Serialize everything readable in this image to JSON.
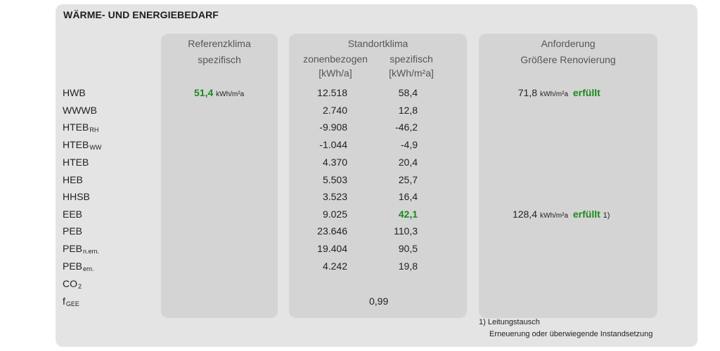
{
  "title": "WÄRME- UND ENERGIEBEDARF",
  "headers": {
    "referenz_1": "Referenzklima",
    "referenz_2": "spezifisch",
    "standort": "Standortklima",
    "zonen": "zonenbezogen",
    "zonen_unit": "[kWh/a]",
    "spez": "spezifisch",
    "spez_unit": "[kWh/m²a]",
    "anf_1": "Anforderung",
    "anf_2": "Größere Renovierung"
  },
  "rows": [
    {
      "main": "HWB",
      "sub": ""
    },
    {
      "main": "WWWB",
      "sub": ""
    },
    {
      "main": "HTEB",
      "sub": "RH"
    },
    {
      "main": "HTEB",
      "sub": "WW"
    },
    {
      "main": "HTEB",
      "sub": ""
    },
    {
      "main": "HEB",
      "sub": ""
    },
    {
      "main": "HHSB",
      "sub": ""
    },
    {
      "main": "EEB",
      "sub": ""
    },
    {
      "main": "PEB",
      "sub": ""
    },
    {
      "main": "PEB",
      "sub": "n.ern."
    },
    {
      "main": "PEB",
      "sub": "ern."
    },
    {
      "main": "CO",
      "sub": "2"
    },
    {
      "main": "f",
      "sub": "GEE"
    }
  ],
  "referenz_hwb": {
    "value": "51,4",
    "unit": "kWh/m²a"
  },
  "zonen_values": [
    "12.518",
    "2.740",
    "-9.908",
    "-1.044",
    "4.370",
    "5.503",
    "3.523",
    "9.025",
    "23.646",
    "19.404",
    "4.242"
  ],
  "spez_values": [
    "58,4",
    "12,8",
    "-46,2",
    "-4,9",
    "20,4",
    "25,7",
    "16,4",
    "42,1",
    "110,3",
    "90,5",
    "19,8"
  ],
  "fgee_value": "0,99",
  "anforderung": {
    "hwb_value": "71,8",
    "hwb_unit": "kWh/m²a",
    "hwb_status": "erfüllt",
    "eeb_value": "128,4",
    "eeb_unit": "kWh/m²a",
    "eeb_status": "erfüllt",
    "eeb_note": "1)"
  },
  "footnote": {
    "line1": "1) Leitungstausch",
    "line2": "Erneuerung oder überwiegende Instandsetzung"
  },
  "colors": {
    "card": "#e4e4e4",
    "panel": "#d4d4d4",
    "green": "#1a8a1a"
  }
}
